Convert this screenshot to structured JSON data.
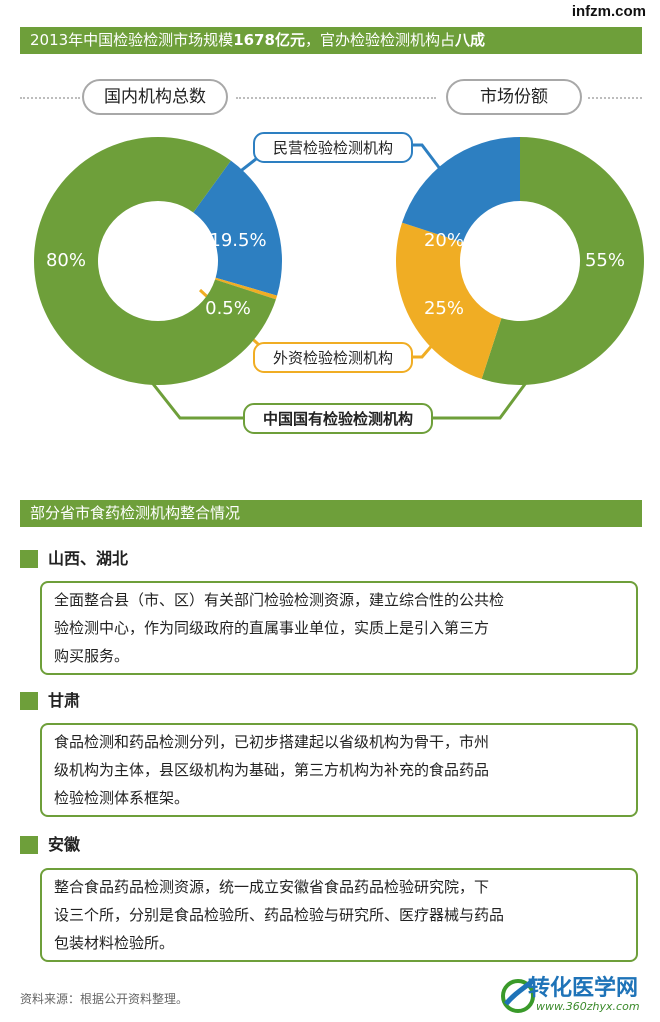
{
  "brand": "infzm.com",
  "headline": {
    "part1": "2013年中国检验检测市场规模",
    "num": "1678",
    "part2": "亿元",
    "part3": "，官办检验检测机构占",
    "part4": "八成"
  },
  "chart_data": [
    {
      "type": "pie",
      "title": "国内机构总数",
      "labels": [
        "中国国有检验检测机构",
        "民营检验检测机构",
        "外资检验检测机构"
      ],
      "values": [
        80,
        19.5,
        0.5
      ],
      "value_labels": [
        "80%",
        "19.5%",
        "0.5%"
      ],
      "colors": [
        "#6e9f3a",
        "#2d7fc1",
        "#f0ad24"
      ]
    },
    {
      "type": "pie",
      "title": "市场份额",
      "labels": [
        "中国国有检验检测机构",
        "民营检验检测机构",
        "外资检验检测机构"
      ],
      "values": [
        55,
        20,
        25
      ],
      "value_labels": [
        "55%",
        "20%",
        "25%"
      ],
      "colors": [
        "#6e9f3a",
        "#2d7fc1",
        "#f0ad24"
      ]
    }
  ],
  "callouts": {
    "private": "民营检验检测机构",
    "foreign": "外资检验检测机构",
    "state": "中国国有检验检测机构"
  },
  "section_title": "部分省市食药检测机构整合情况",
  "regions": [
    {
      "name": "山西、湖北",
      "lines": [
        "全面整合县（市、区）有关部门检验检测资源，建立综合性的公共检",
        "验检测中心，作为同级政府的直属事业单位，实质上是引入第三方",
        "购买服务。"
      ]
    },
    {
      "name": "甘肃",
      "lines": [
        "食品检测和药品检测分列，已初步搭建起以省级机构为骨干，市州",
        "级机构为主体，县区级机构为基础，第三方机构为补充的食品药品",
        "检验检测体系框架。"
      ]
    },
    {
      "name": "安徽",
      "lines": [
        "整合食品药品检测资源，统一成立安徽省食品药品检验研究院，下",
        "设三个所，分别是食品检验所、药品检验与研究所、医疗器械与药品",
        "包装材料检验所。"
      ]
    }
  ],
  "source": "资料来源：根据公开资料整理。",
  "watermark": {
    "title": "转化医学网",
    "url": "www.360zhyx.com"
  }
}
